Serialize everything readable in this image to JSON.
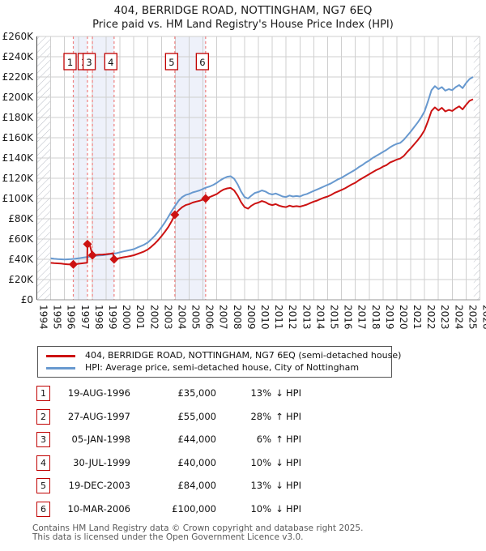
{
  "header": {
    "title": "404, BERRIDGE ROAD, NOTTINGHAM, NG7 6EQ",
    "subtitle": "Price paid vs. HM Land Registry's House Price Index (HPI)"
  },
  "colors": {
    "price_line": "#cc1212",
    "hpi_line": "#6899cf",
    "event_line": "#ee8080",
    "ownership_band": "#eef1fa",
    "grid": "#cfcfcf",
    "axis_left": "#444444",
    "axis_bottom": "#999999",
    "hatch": "#b9bdc6",
    "num_box_border": "#c00000",
    "marker": "#cc1212"
  },
  "chart_data": {
    "type": "line",
    "title": "404, BERRIDGE ROAD, NOTTINGHAM, NG7 6EQ — Price paid vs. HPI",
    "units": "GBP thousands",
    "x_axis": {
      "range": [
        1994,
        2026
      ],
      "ticks": [
        1994,
        1995,
        1996,
        1997,
        1998,
        1999,
        2000,
        2001,
        2002,
        2003,
        2004,
        2005,
        2006,
        2007,
        2008,
        2009,
        2010,
        2011,
        2012,
        2013,
        2014,
        2015,
        2016,
        2017,
        2018,
        2019,
        2020,
        2021,
        2022,
        2023,
        2024,
        2025,
        2026
      ]
    },
    "y_axis": {
      "range_k": [
        0,
        260
      ],
      "tick_values": [
        0,
        20,
        40,
        60,
        80,
        100,
        120,
        140,
        160,
        180,
        200,
        220,
        240,
        260
      ],
      "tick_labels": [
        "£0",
        "£20K",
        "£40K",
        "£60K",
        "£80K",
        "£100K",
        "£120K",
        "£140K",
        "£160K",
        "£180K",
        "£200K",
        "£220K",
        "£240K",
        "£260K"
      ]
    },
    "grid": true,
    "legend_position": "below",
    "ownership_bands": [
      [
        1996.633,
        1997.655
      ],
      [
        1998.012,
        1999.578
      ],
      [
        2003.967,
        2006.189
      ]
    ],
    "no_data_hatch": [
      [
        1994,
        1995.0
      ],
      [
        2025.55,
        2026
      ]
    ],
    "series": [
      {
        "name": "HPI: Average price, semi-detached house, City of Nottingham",
        "key": "hpi",
        "x_start": 1995.0,
        "x_step": 0.25,
        "values": [
          41,
          40.5,
          40.2,
          40,
          39.8,
          40,
          40.2,
          40.5,
          41,
          41.5,
          42,
          42.5,
          43,
          43.5,
          43.8,
          44,
          44.5,
          45,
          45.5,
          46,
          47,
          47.8,
          48.5,
          49.2,
          50,
          51.5,
          53,
          54.5,
          56.5,
          59.5,
          63,
          67,
          71.5,
          76.5,
          82,
          88,
          93,
          98,
          101.5,
          103.5,
          104.5,
          106,
          107,
          108,
          109.5,
          111,
          112,
          113.5,
          115.5,
          118,
          120,
          121.5,
          122,
          119.5,
          114,
          107,
          101.5,
          100,
          103,
          105.5,
          106.5,
          108,
          107,
          105,
          104,
          105,
          103.5,
          102,
          101.5,
          103,
          102,
          102.5,
          102,
          103.5,
          104.5,
          106,
          107.5,
          109,
          110.5,
          112,
          113.5,
          115,
          117,
          119,
          120.5,
          122.5,
          124.5,
          126.5,
          128.5,
          131,
          133,
          135.5,
          137.5,
          140,
          142,
          144,
          146,
          148,
          150.5,
          152.5,
          154,
          155,
          158,
          162,
          166,
          170.5,
          175,
          180,
          186,
          196,
          207,
          211,
          208,
          210,
          206.5,
          208,
          207,
          210,
          212,
          209,
          214,
          218,
          220
        ]
      },
      {
        "name": "404, BERRIDGE ROAD, NOTTINGHAM, NG7 6EQ (semi-detached house)",
        "key": "price_paid",
        "points": [
          [
            1995.0,
            36.5
          ],
          [
            1995.25,
            36.2
          ],
          [
            1995.5,
            36.0
          ],
          [
            1995.75,
            35.8
          ],
          [
            1996.0,
            35.3
          ],
          [
            1996.25,
            35.0
          ],
          [
            1996.633,
            35.0
          ],
          [
            1996.75,
            35.2
          ],
          [
            1997.0,
            35.6
          ],
          [
            1997.25,
            36.0
          ],
          [
            1997.5,
            36.4
          ],
          [
            1997.63,
            36.6
          ],
          [
            1997.655,
            55.0
          ],
          [
            1997.8,
            55.3
          ],
          [
            1998.012,
            44.0
          ],
          [
            1998.25,
            44.3
          ],
          [
            1998.5,
            44.6
          ],
          [
            1998.75,
            44.7
          ],
          [
            1999.0,
            45.0
          ],
          [
            1999.25,
            45.4
          ],
          [
            1999.5,
            46.0
          ],
          [
            1999.578,
            40.0
          ],
          [
            1999.75,
            40.5
          ],
          [
            2000.0,
            41.3
          ],
          [
            2000.25,
            42.0
          ],
          [
            2000.5,
            42.6
          ],
          [
            2000.75,
            43.2
          ],
          [
            2001.0,
            44.0
          ],
          [
            2001.25,
            45.2
          ],
          [
            2001.5,
            46.5
          ],
          [
            2001.75,
            47.8
          ],
          [
            2002.0,
            49.6
          ],
          [
            2002.25,
            52.2
          ],
          [
            2002.5,
            55.3
          ],
          [
            2002.75,
            58.8
          ],
          [
            2003.0,
            62.8
          ],
          [
            2003.25,
            67.2
          ],
          [
            2003.5,
            72.0
          ],
          [
            2003.75,
            78.0
          ],
          [
            2003.967,
            84.0
          ],
          [
            2004.25,
            88.5
          ],
          [
            2004.5,
            91.5
          ],
          [
            2004.75,
            93.5
          ],
          [
            2005.0,
            94.5
          ],
          [
            2005.25,
            96.0
          ],
          [
            2005.5,
            97.0
          ],
          [
            2005.75,
            97.8
          ],
          [
            2006.0,
            99.0
          ],
          [
            2006.189,
            100.0
          ],
          [
            2006.5,
            101.5
          ],
          [
            2006.75,
            103.0
          ],
          [
            2007.0,
            104.5
          ],
          [
            2007.25,
            107.0
          ],
          [
            2007.5,
            109.0
          ],
          [
            2007.75,
            110.0
          ],
          [
            2008.0,
            110.5
          ],
          [
            2008.25,
            108.0
          ],
          [
            2008.5,
            103.0
          ],
          [
            2008.75,
            96.5
          ],
          [
            2009.0,
            91.5
          ],
          [
            2009.25,
            90.0
          ],
          [
            2009.5,
            93.0
          ],
          [
            2009.75,
            95.0
          ],
          [
            2010.0,
            96.0
          ],
          [
            2010.25,
            97.5
          ],
          [
            2010.5,
            96.5
          ],
          [
            2010.75,
            94.5
          ],
          [
            2011.0,
            93.5
          ],
          [
            2011.25,
            94.5
          ],
          [
            2011.5,
            93.0
          ],
          [
            2011.75,
            92.0
          ],
          [
            2012.0,
            91.5
          ],
          [
            2012.25,
            93.0
          ],
          [
            2012.5,
            92.0
          ],
          [
            2012.75,
            92.5
          ],
          [
            2013.0,
            92.0
          ],
          [
            2013.25,
            93.0
          ],
          [
            2013.5,
            94.0
          ],
          [
            2013.75,
            95.5
          ],
          [
            2014.0,
            97.0
          ],
          [
            2014.25,
            98.0
          ],
          [
            2014.5,
            99.5
          ],
          [
            2014.75,
            101.0
          ],
          [
            2015.0,
            102.0
          ],
          [
            2015.25,
            103.5
          ],
          [
            2015.5,
            105.5
          ],
          [
            2015.75,
            107.0
          ],
          [
            2016.0,
            108.5
          ],
          [
            2016.25,
            110.0
          ],
          [
            2016.5,
            112.0
          ],
          [
            2016.75,
            114.0
          ],
          [
            2017.0,
            115.5
          ],
          [
            2017.25,
            118.0
          ],
          [
            2017.5,
            120.0
          ],
          [
            2017.75,
            122.0
          ],
          [
            2018.0,
            124.0
          ],
          [
            2018.25,
            126.0
          ],
          [
            2018.5,
            128.0
          ],
          [
            2018.75,
            129.5
          ],
          [
            2019.0,
            131.5
          ],
          [
            2019.25,
            133.0
          ],
          [
            2019.5,
            135.5
          ],
          [
            2019.75,
            137.0
          ],
          [
            2020.0,
            138.5
          ],
          [
            2020.25,
            139.5
          ],
          [
            2020.5,
            142.0
          ],
          [
            2020.75,
            146.0
          ],
          [
            2021.0,
            149.5
          ],
          [
            2021.25,
            153.5
          ],
          [
            2021.5,
            157.5
          ],
          [
            2021.75,
            162.0
          ],
          [
            2022.0,
            167.5
          ],
          [
            2022.25,
            176.5
          ],
          [
            2022.5,
            186.5
          ],
          [
            2022.75,
            190.0
          ],
          [
            2023.0,
            187.0
          ],
          [
            2023.25,
            189.5
          ],
          [
            2023.5,
            186.0
          ],
          [
            2023.75,
            187.5
          ],
          [
            2024.0,
            186.5
          ],
          [
            2024.25,
            189.0
          ],
          [
            2024.5,
            191.0
          ],
          [
            2024.75,
            188.0
          ],
          [
            2025.0,
            192.5
          ],
          [
            2025.25,
            196.5
          ],
          [
            2025.5,
            198.0
          ]
        ]
      }
    ]
  },
  "legend": {
    "series": [
      {
        "label": "404, BERRIDGE ROAD, NOTTINGHAM, NG7 6EQ (semi-detached house)",
        "color": "#cc1212"
      },
      {
        "label": "HPI: Average price, semi-detached house, City of Nottingham",
        "color": "#6899cf"
      }
    ]
  },
  "transactions": [
    {
      "num": "1",
      "date": "19-AUG-1996",
      "price": "£35,000",
      "pct": "13%",
      "dir": "↓",
      "ref": "HPI",
      "x": 1996.633,
      "price_k": 35
    },
    {
      "num": "2",
      "date": "27-AUG-1997",
      "price": "£55,000",
      "pct": "28%",
      "dir": "↑",
      "ref": "HPI",
      "x": 1997.655,
      "price_k": 55
    },
    {
      "num": "3",
      "date": "05-JAN-1998",
      "price": "£44,000",
      "pct": "6%",
      "dir": "↑",
      "ref": "HPI",
      "x": 1998.012,
      "price_k": 44
    },
    {
      "num": "4",
      "date": "30-JUL-1999",
      "price": "£40,000",
      "pct": "10%",
      "dir": "↓",
      "ref": "HPI",
      "x": 1999.578,
      "price_k": 40
    },
    {
      "num": "5",
      "date": "19-DEC-2003",
      "price": "£84,000",
      "pct": "13%",
      "dir": "↓",
      "ref": "HPI",
      "x": 2003.967,
      "price_k": 84
    },
    {
      "num": "6",
      "date": "10-MAR-2006",
      "price": "£100,000",
      "pct": "10%",
      "dir": "↓",
      "ref": "HPI",
      "x": 2006.189,
      "price_k": 100
    }
  ],
  "footer": {
    "line1": "Contains HM Land Registry data © Crown copyright and database right 2025.",
    "line2": "This data is licensed under the Open Government Licence v3.0."
  }
}
